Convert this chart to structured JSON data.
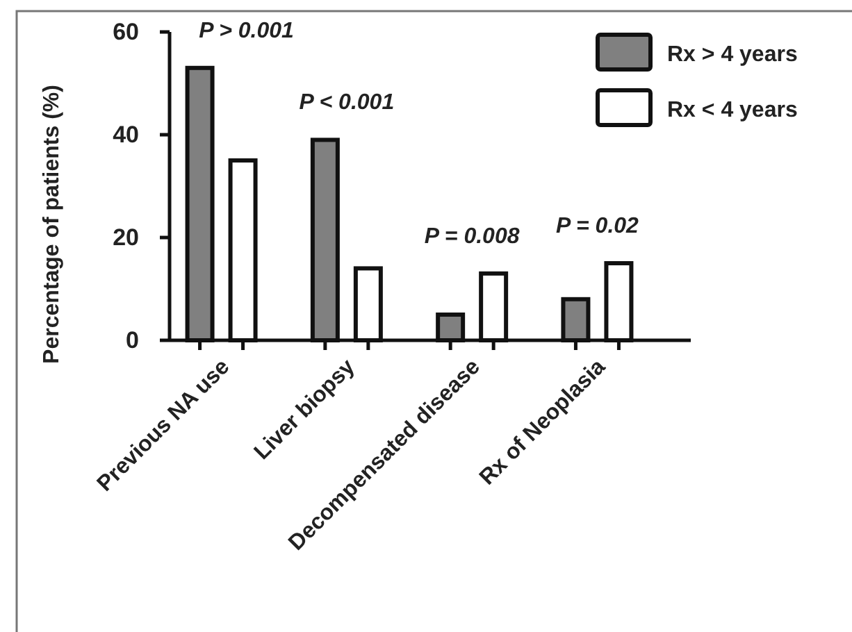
{
  "chart_data": {
    "type": "bar",
    "ylabel": "Percentage of patients (%)",
    "categories": [
      "Previous NA use",
      "Liver biopsy",
      "Decompensated disease",
      "Rx of Neoplasia"
    ],
    "series": [
      {
        "name": "Rx > 4 years",
        "color": "#808080",
        "values": [
          53,
          39,
          5,
          8
        ]
      },
      {
        "name": "Rx < 4 years",
        "color": "#ffffff",
        "values": [
          35,
          14,
          13,
          15
        ]
      }
    ],
    "ylim": [
      0,
      60
    ],
    "yticks": [
      0,
      20,
      40,
      60
    ],
    "grid": false,
    "legend": "top right",
    "annotations": [
      "P > 0.001",
      "P < 0.001",
      "P = 0.008",
      "P = 0.02"
    ]
  }
}
